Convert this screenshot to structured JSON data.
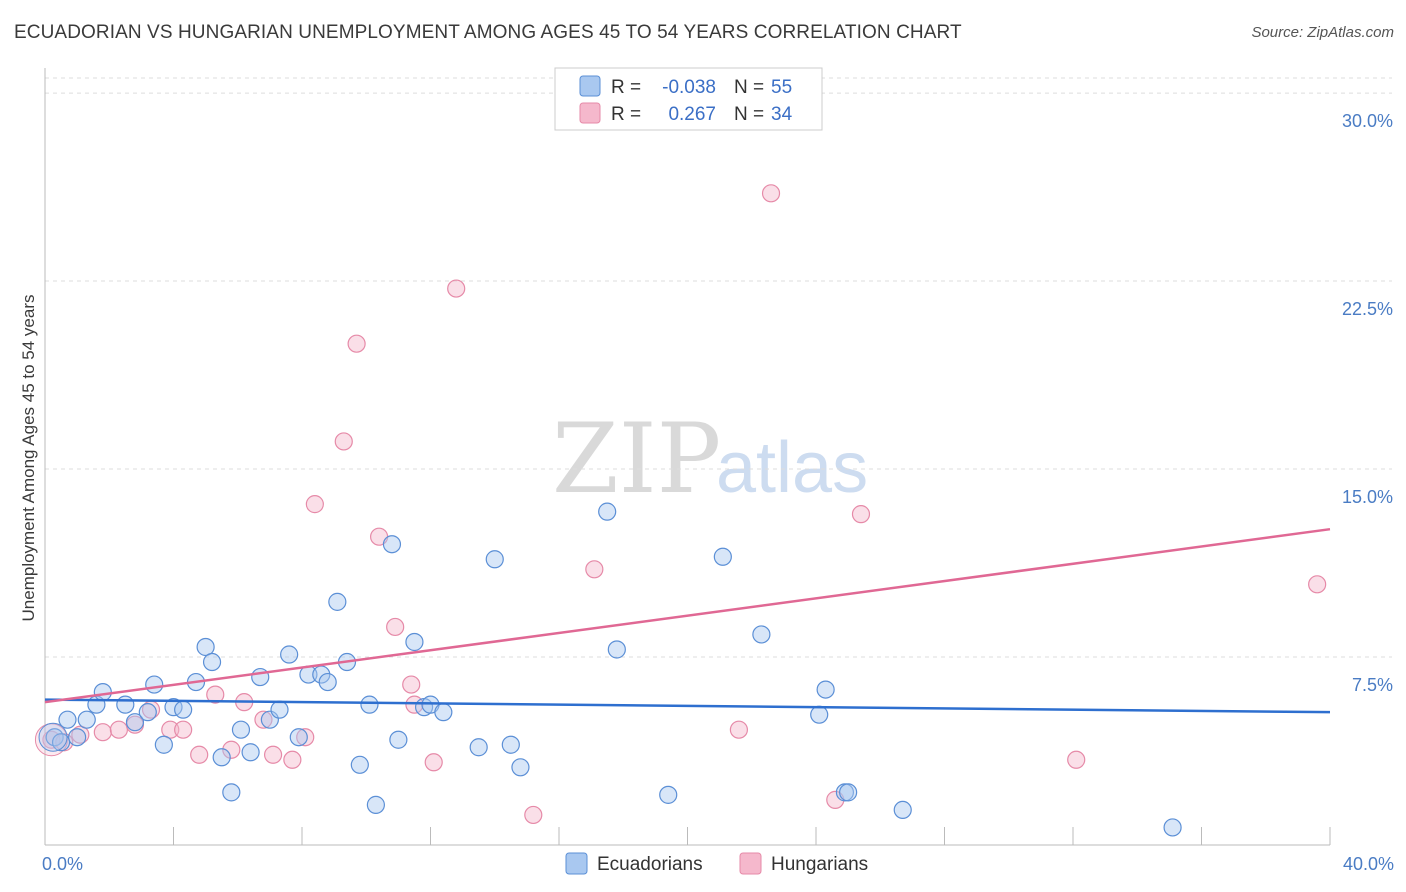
{
  "title": "ECUADORIAN VS HUNGARIAN UNEMPLOYMENT AMONG AGES 45 TO 54 YEARS CORRELATION CHART",
  "source": "Source: ZipAtlas.com",
  "watermark": {
    "zip": "ZIP",
    "atlas": "atlas"
  },
  "legend": {
    "r_label": "R =",
    "n_label": "N =",
    "rows": [
      {
        "r": "-0.038",
        "n": "55"
      },
      {
        "r": "0.267",
        "n": "34"
      }
    ]
  },
  "colors": {
    "ecuadorians_fill": "#a9c8f0",
    "ecuadorians_stroke": "#5b8fd6",
    "ecuadorians_line": "#2e6fcf",
    "hungarians_fill": "#f5b8cc",
    "hungarians_stroke": "#e68aa8",
    "hungarians_line": "#e06894"
  },
  "chart_data": {
    "type": "scatter",
    "title": "ECUADORIAN VS HUNGARIAN UNEMPLOYMENT AMONG AGES 45 TO 54 YEARS CORRELATION CHART",
    "xlabel": "",
    "ylabel": "Unemployment Among Ages 45 to 54 years",
    "xlim": [
      0,
      40
    ],
    "ylim": [
      0,
      31
    ],
    "x_tick_labels": [
      "0.0%",
      "40.0%"
    ],
    "y_ticks": [
      7.5,
      15.0,
      22.5,
      30.0
    ],
    "y_tick_labels": [
      "7.5%",
      "15.0%",
      "22.5%",
      "30.0%"
    ],
    "grid": true,
    "legend_position": "top-center",
    "series": [
      {
        "name": "Ecuadorians",
        "r": -0.038,
        "n": 55,
        "trend": {
          "x": [
            0,
            40
          ],
          "y": [
            5.8,
            5.3
          ]
        },
        "points": [
          [
            0.3,
            4.3
          ],
          [
            0.5,
            4.1
          ],
          [
            0.7,
            5.0
          ],
          [
            1.0,
            4.3
          ],
          [
            1.3,
            5.0
          ],
          [
            1.6,
            5.6
          ],
          [
            1.8,
            6.1
          ],
          [
            2.5,
            5.6
          ],
          [
            2.8,
            4.9
          ],
          [
            3.2,
            5.3
          ],
          [
            3.4,
            6.4
          ],
          [
            3.7,
            4.0
          ],
          [
            4.0,
            5.5
          ],
          [
            4.3,
            5.4
          ],
          [
            4.7,
            6.5
          ],
          [
            5.0,
            7.9
          ],
          [
            5.2,
            7.3
          ],
          [
            5.5,
            3.5
          ],
          [
            5.8,
            2.1
          ],
          [
            6.1,
            4.6
          ],
          [
            6.4,
            3.7
          ],
          [
            6.7,
            6.7
          ],
          [
            7.0,
            5.0
          ],
          [
            7.3,
            5.4
          ],
          [
            7.6,
            7.6
          ],
          [
            7.9,
            4.3
          ],
          [
            8.2,
            6.8
          ],
          [
            8.6,
            6.8
          ],
          [
            8.8,
            6.5
          ],
          [
            9.1,
            9.7
          ],
          [
            9.4,
            7.3
          ],
          [
            9.8,
            3.2
          ],
          [
            10.1,
            5.6
          ],
          [
            10.3,
            1.6
          ],
          [
            10.8,
            12.0
          ],
          [
            11.0,
            4.2
          ],
          [
            11.5,
            8.1
          ],
          [
            11.8,
            5.5
          ],
          [
            12.0,
            5.6
          ],
          [
            12.4,
            5.3
          ],
          [
            13.5,
            3.9
          ],
          [
            14.0,
            11.4
          ],
          [
            14.5,
            4.0
          ],
          [
            14.8,
            3.1
          ],
          [
            17.5,
            13.3
          ],
          [
            17.8,
            7.8
          ],
          [
            19.4,
            2.0
          ],
          [
            21.1,
            11.5
          ],
          [
            22.3,
            8.4
          ],
          [
            24.1,
            5.2
          ],
          [
            24.3,
            6.2
          ],
          [
            24.9,
            2.1
          ],
          [
            25.0,
            2.1
          ],
          [
            26.7,
            1.4
          ],
          [
            35.1,
            0.7
          ]
        ]
      },
      {
        "name": "Hungarians",
        "r": 0.267,
        "n": 34,
        "trend": {
          "x": [
            0,
            40
          ],
          "y": [
            5.7,
            12.6
          ]
        },
        "points": [
          [
            0.2,
            4.2
          ],
          [
            0.6,
            4.1
          ],
          [
            1.1,
            4.4
          ],
          [
            1.8,
            4.5
          ],
          [
            2.3,
            4.6
          ],
          [
            2.8,
            4.8
          ],
          [
            3.3,
            5.4
          ],
          [
            3.9,
            4.6
          ],
          [
            4.3,
            4.6
          ],
          [
            4.8,
            3.6
          ],
          [
            5.3,
            6.0
          ],
          [
            5.8,
            3.8
          ],
          [
            6.2,
            5.7
          ],
          [
            6.8,
            5.0
          ],
          [
            7.1,
            3.6
          ],
          [
            7.7,
            3.4
          ],
          [
            8.1,
            4.3
          ],
          [
            8.4,
            13.6
          ],
          [
            9.3,
            16.1
          ],
          [
            9.7,
            20.0
          ],
          [
            10.4,
            12.3
          ],
          [
            10.9,
            8.7
          ],
          [
            11.4,
            6.4
          ],
          [
            12.1,
            3.3
          ],
          [
            12.8,
            22.2
          ],
          [
            15.2,
            1.2
          ],
          [
            17.1,
            11.0
          ],
          [
            21.6,
            4.6
          ],
          [
            22.6,
            26.0
          ],
          [
            24.6,
            1.8
          ],
          [
            25.4,
            13.2
          ],
          [
            32.1,
            3.4
          ],
          [
            39.6,
            10.4
          ],
          [
            11.5,
            5.6
          ]
        ]
      }
    ]
  },
  "bottom_legend": {
    "items": [
      {
        "label": "Ecuadorians"
      },
      {
        "label": "Hungarians"
      }
    ]
  }
}
